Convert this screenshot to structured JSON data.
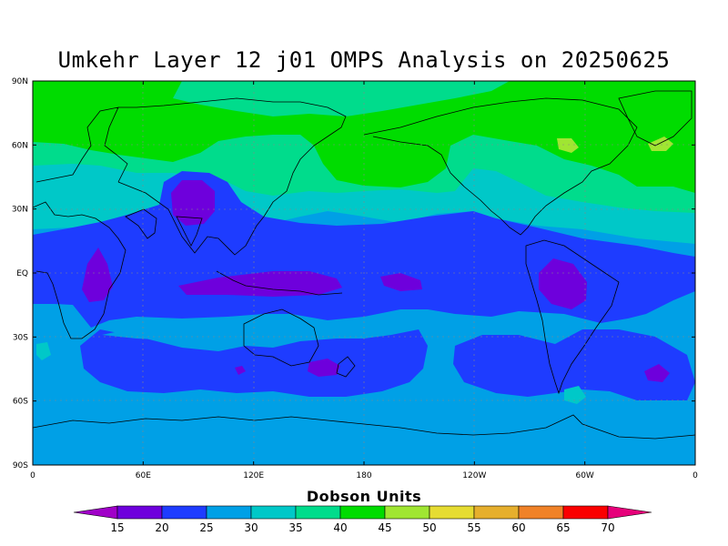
{
  "title": "Umkehr Layer 12 j01 OMPS Analysis on 20250625",
  "lat_labels": [
    "90N",
    "60N",
    "30N",
    "EQ",
    "30S",
    "60S",
    "90S"
  ],
  "lon_labels": [
    "0",
    "60E",
    "120E",
    "180",
    "120W",
    "60W",
    "0"
  ],
  "colorbar": {
    "title": "Dobson Units",
    "labels": [
      "15",
      "20",
      "25",
      "30",
      "35",
      "40",
      "45",
      "50",
      "55",
      "60",
      "65",
      "70"
    ],
    "colors": [
      "#a000c8",
      "#6e00dc",
      "#1e3cff",
      "#00a0e6",
      "#00c8c8",
      "#00dc8c",
      "#00dc00",
      "#a0e632",
      "#e6dc32",
      "#e6af2d",
      "#f08228",
      "#fa0000",
      "#e6007a"
    ]
  },
  "palette": {
    "purple": "#6e00dc",
    "blue": "#1e3cff",
    "skyblue": "#00a0e6",
    "cyan": "#00c8c8",
    "teal": "#00dc8c",
    "green": "#00dc00",
    "lime": "#a0e632"
  }
}
